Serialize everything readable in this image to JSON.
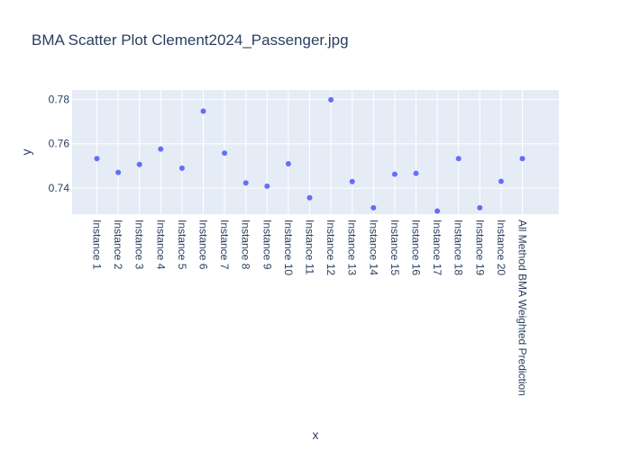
{
  "chart_data": {
    "type": "scatter",
    "title": "BMA Scatter Plot Clement2024_Passenger.jpg",
    "xlabel": "x",
    "ylabel": "y",
    "categories": [
      "Instance 1",
      "Instance 2",
      "Instance 3",
      "Instance 4",
      "Instance 5",
      "Instance 6",
      "Instance 7",
      "Instance 8",
      "Instance 9",
      "Instance 10",
      "Instance 11",
      "Instance 12",
      "Instance 13",
      "Instance 14",
      "Instance 15",
      "Instance 16",
      "Instance 17",
      "Instance 18",
      "Instance 19",
      "Instance 20",
      "All Method BMA Weighted Prediction"
    ],
    "values": [
      0.7533,
      0.7471,
      0.7507,
      0.7576,
      0.749,
      0.7747,
      0.7558,
      0.7424,
      0.7409,
      0.751,
      0.7357,
      0.7798,
      0.743,
      0.7312,
      0.7463,
      0.7467,
      0.7297,
      0.7533,
      0.7312,
      0.7431,
      0.7533
    ],
    "ylim": [
      0.7283,
      0.7842
    ],
    "yticks": [
      0.74,
      0.76,
      0.78
    ],
    "ytick_labels": [
      "0.74",
      "0.76",
      "0.78"
    ],
    "grid": true,
    "marker_color": "#636efa",
    "plot_bg": "#e5ecf6",
    "grid_color": "#ffffff"
  }
}
